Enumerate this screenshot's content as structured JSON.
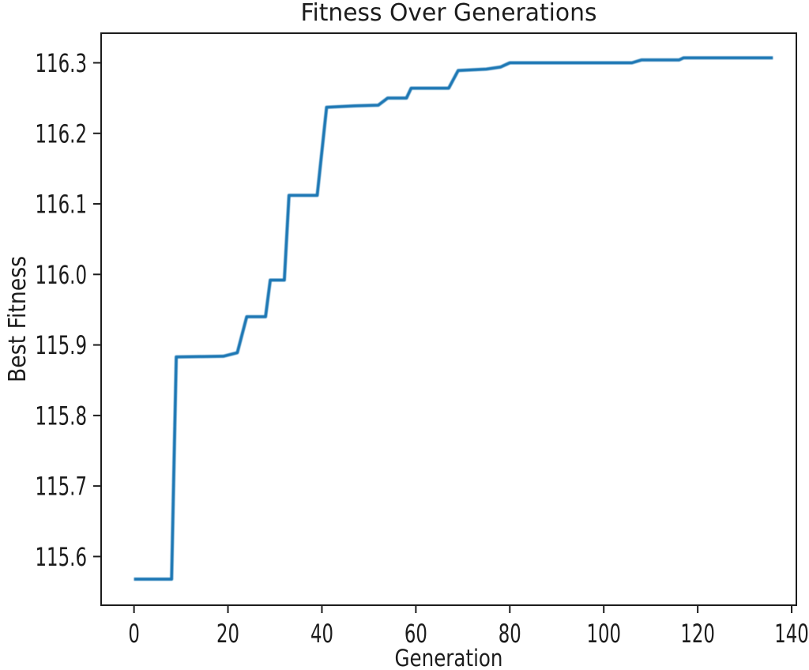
{
  "chart_data": {
    "type": "line",
    "title": "Fitness Over Generations",
    "xlabel": "Generation",
    "ylabel": "Best Fitness",
    "xlim": [
      -7,
      141
    ],
    "ylim": [
      115.531,
      116.342
    ],
    "x_ticks": [
      0,
      20,
      40,
      60,
      80,
      100,
      120,
      140
    ],
    "y_tick_labels": [
      "115.6",
      "115.7",
      "115.8",
      "115.9",
      "116.0",
      "116.1",
      "116.2",
      "116.3"
    ],
    "grid": false,
    "legend": false,
    "colors": {
      "line": "#1f77b4",
      "axis": "#1c1c1c",
      "text": "#1c1c1c",
      "background": "#ffffff"
    },
    "series": [
      {
        "name": "Best Fitness",
        "points": [
          [
            0,
            115.568
          ],
          [
            8,
            115.568
          ],
          [
            9,
            115.883
          ],
          [
            19,
            115.884
          ],
          [
            22,
            115.889
          ],
          [
            24,
            115.94
          ],
          [
            28,
            115.94
          ],
          [
            29,
            115.992
          ],
          [
            32,
            115.992
          ],
          [
            33,
            116.112
          ],
          [
            39,
            116.112
          ],
          [
            41,
            116.237
          ],
          [
            47,
            116.239
          ],
          [
            52,
            116.24
          ],
          [
            54,
            116.25
          ],
          [
            58,
            116.25
          ],
          [
            59,
            116.264
          ],
          [
            67,
            116.264
          ],
          [
            69,
            116.289
          ],
          [
            75,
            116.291
          ],
          [
            78,
            116.294
          ],
          [
            80,
            116.3
          ],
          [
            106,
            116.3
          ],
          [
            108,
            116.304
          ],
          [
            116,
            116.304
          ],
          [
            117,
            116.307
          ],
          [
            136,
            116.307
          ]
        ]
      }
    ]
  }
}
